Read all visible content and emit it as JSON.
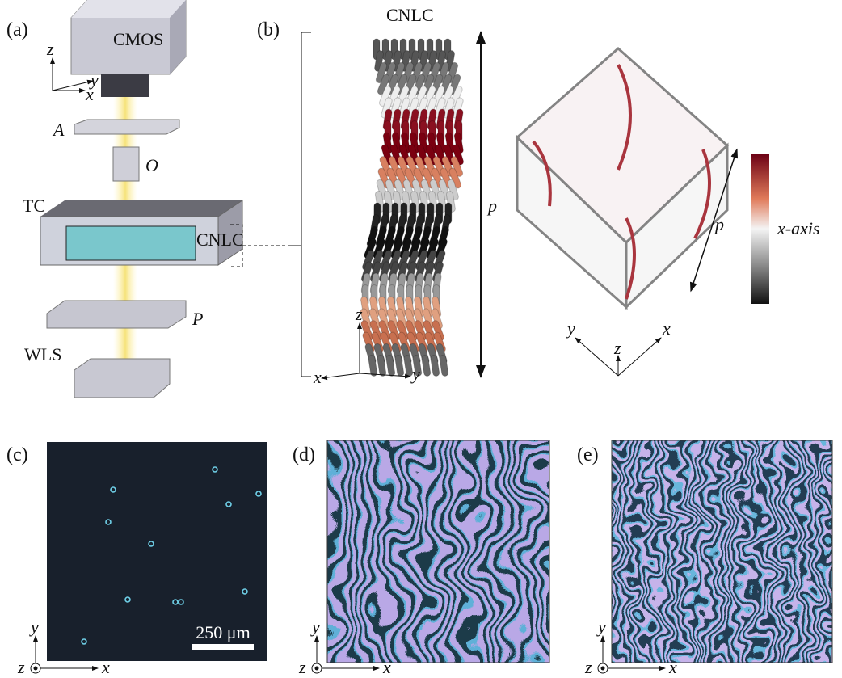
{
  "panel_a": {
    "label": "(a)",
    "camera": "CMOS",
    "axes": {
      "z": "z",
      "y": "y",
      "x": "x"
    },
    "analyzer": "A",
    "objective": "O",
    "cell": "TC",
    "cell_inset": "CNLC",
    "polarizer": "P",
    "source": "WLS"
  },
  "panel_b": {
    "label": "(b)",
    "title": "CNLC",
    "pitch_left": "p",
    "axes": {
      "z": "z",
      "x": "x",
      "y": "y"
    },
    "pitch_right": "p",
    "colorbar_label": "x-axis",
    "axes_right": {
      "y": "y",
      "x": "x",
      "z": "z"
    }
  },
  "panel_c": {
    "label": "(c)",
    "scale_bar": "250 μm",
    "axes": {
      "y": "y",
      "z": "z",
      "x": "x"
    }
  },
  "panel_d": {
    "label": "(d)",
    "axes": {
      "y": "y",
      "z": "z",
      "x": "x"
    }
  },
  "panel_e": {
    "label": "(e)",
    "axes": {
      "y": "y",
      "z": "z",
      "x": "x"
    }
  }
}
